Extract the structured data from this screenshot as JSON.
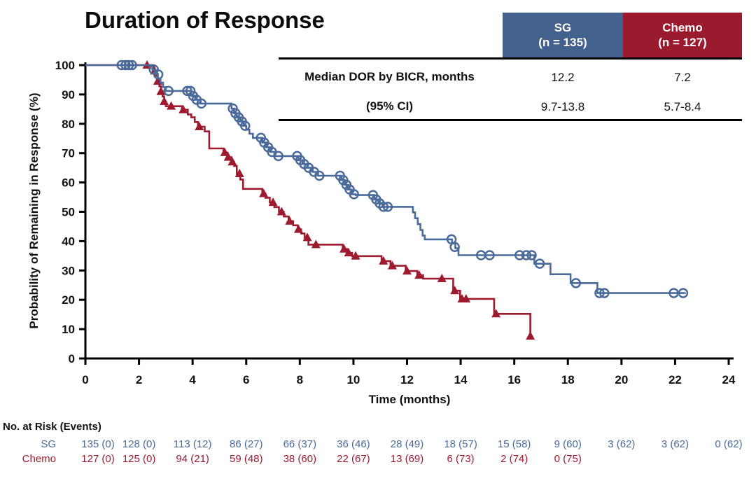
{
  "header": {
    "title": "Duration of Response"
  },
  "stats_table": {
    "columns": [
      {
        "label": "SG",
        "sub": "(n = 135)",
        "color": "#42618c"
      },
      {
        "label": "Chemo",
        "sub": "(n = 127)",
        "color": "#9b1b2e"
      }
    ],
    "rows": [
      {
        "label": "Median DOR by BICR, months",
        "sg": "12.2",
        "chemo": "7.2"
      },
      {
        "label": "(95% CI)",
        "sg": "9.7-13.8",
        "chemo": "5.7-8.4"
      }
    ]
  },
  "chart_data": {
    "type": "line",
    "subtype": "kaplan-meier-step",
    "title": "Duration of Response",
    "xlabel": "Time (months)",
    "ylabel": "Probability of Remaining in Response (%)",
    "xlim": [
      0,
      24
    ],
    "ylim": [
      0,
      100
    ],
    "xticks": [
      0,
      2,
      4,
      6,
      8,
      10,
      12,
      14,
      16,
      18,
      20,
      22,
      24
    ],
    "yticks": [
      0,
      10,
      20,
      30,
      40,
      50,
      60,
      70,
      80,
      90,
      100
    ],
    "grid": false,
    "legend_position": "none",
    "axis_color": "#000000",
    "series": [
      {
        "name": "SG",
        "color": "#4a6b9a",
        "marker": "open-circle",
        "median_months": 12.2,
        "steps": [
          [
            0,
            100
          ],
          [
            2.5,
            98.5
          ],
          [
            2.6,
            97
          ],
          [
            2.7,
            95.5
          ],
          [
            2.8,
            94
          ],
          [
            2.9,
            92.5
          ],
          [
            3.0,
            91.2
          ],
          [
            3.95,
            89.5
          ],
          [
            4.1,
            88.2
          ],
          [
            4.3,
            86.9
          ],
          [
            5.45,
            85.2
          ],
          [
            5.55,
            83.6
          ],
          [
            5.65,
            82.2
          ],
          [
            5.78,
            80.8
          ],
          [
            5.9,
            79.3
          ],
          [
            6.0,
            78
          ],
          [
            6.12,
            76.6
          ],
          [
            6.25,
            75.2
          ],
          [
            6.6,
            73.6
          ],
          [
            6.75,
            72
          ],
          [
            6.9,
            70.4
          ],
          [
            7.05,
            69
          ],
          [
            7.95,
            67.6
          ],
          [
            8.1,
            66.3
          ],
          [
            8.28,
            65
          ],
          [
            8.48,
            63.6
          ],
          [
            8.68,
            62.3
          ],
          [
            9.55,
            60.8
          ],
          [
            9.68,
            59.2
          ],
          [
            9.8,
            57.6
          ],
          [
            9.93,
            56
          ],
          [
            10.08,
            55.7
          ],
          [
            10.78,
            54.2
          ],
          [
            10.93,
            52.9
          ],
          [
            11.08,
            51.7
          ],
          [
            12.22,
            49.8
          ],
          [
            12.3,
            47.8
          ],
          [
            12.4,
            45.8
          ],
          [
            12.5,
            43.8
          ],
          [
            12.58,
            41.9
          ],
          [
            12.66,
            40.6
          ],
          [
            13.68,
            39.2
          ],
          [
            13.8,
            37.6
          ],
          [
            13.92,
            35.2
          ],
          [
            16.75,
            32.3
          ],
          [
            17.35,
            28.7
          ],
          [
            18.1,
            25.7
          ],
          [
            19.1,
            22.3
          ],
          [
            22.4,
            22.3
          ]
        ],
        "censor_marks": [
          [
            1.35,
            100
          ],
          [
            1.5,
            100
          ],
          [
            1.62,
            100
          ],
          [
            1.74,
            100
          ],
          [
            2.55,
            98.5
          ],
          [
            2.72,
            96.8
          ],
          [
            3.1,
            91.2
          ],
          [
            3.8,
            91.2
          ],
          [
            3.92,
            91.2
          ],
          [
            4.02,
            89.5
          ],
          [
            4.15,
            88.2
          ],
          [
            4.33,
            86.9
          ],
          [
            5.5,
            85.2
          ],
          [
            5.6,
            83.6
          ],
          [
            5.72,
            82.2
          ],
          [
            5.84,
            80.8
          ],
          [
            5.96,
            79.3
          ],
          [
            6.55,
            75.2
          ],
          [
            6.67,
            73.6
          ],
          [
            6.82,
            72
          ],
          [
            6.96,
            70.4
          ],
          [
            7.2,
            69
          ],
          [
            7.9,
            69
          ],
          [
            8.02,
            67.6
          ],
          [
            8.16,
            66.3
          ],
          [
            8.33,
            65
          ],
          [
            8.53,
            63.6
          ],
          [
            8.73,
            62.3
          ],
          [
            9.5,
            62.3
          ],
          [
            9.62,
            60.8
          ],
          [
            9.74,
            59.2
          ],
          [
            9.86,
            57.6
          ],
          [
            10.02,
            56
          ],
          [
            10.73,
            55.7
          ],
          [
            10.85,
            54.2
          ],
          [
            10.98,
            52.9
          ],
          [
            11.12,
            51.7
          ],
          [
            11.28,
            51.7
          ],
          [
            13.66,
            40.6
          ],
          [
            13.78,
            38
          ],
          [
            14.76,
            35.2
          ],
          [
            15.08,
            35.2
          ],
          [
            16.2,
            35.2
          ],
          [
            16.45,
            35.2
          ],
          [
            16.65,
            35.2
          ],
          [
            16.95,
            32.3
          ],
          [
            18.3,
            25.7
          ],
          [
            19.18,
            22.3
          ],
          [
            19.36,
            22.3
          ],
          [
            21.95,
            22.3
          ],
          [
            22.3,
            22.3
          ]
        ]
      },
      {
        "name": "Chemo",
        "color": "#9e1b2f",
        "marker": "filled-triangle",
        "median_months": 7.2,
        "steps": [
          [
            0,
            100
          ],
          [
            2.55,
            98
          ],
          [
            2.62,
            96.3
          ],
          [
            2.7,
            94.5
          ],
          [
            2.76,
            92.8
          ],
          [
            2.82,
            91
          ],
          [
            2.88,
            89.3
          ],
          [
            2.94,
            87.6
          ],
          [
            3.0,
            86
          ],
          [
            3.6,
            84.8
          ],
          [
            3.82,
            83.2
          ],
          [
            3.95,
            82.2
          ],
          [
            4.08,
            80.6
          ],
          [
            4.2,
            79
          ],
          [
            4.45,
            77.4
          ],
          [
            4.62,
            71.6
          ],
          [
            5.15,
            70.2
          ],
          [
            5.3,
            68.6
          ],
          [
            5.45,
            67
          ],
          [
            5.55,
            65.6
          ],
          [
            5.65,
            63
          ],
          [
            5.78,
            61
          ],
          [
            5.88,
            57.8
          ],
          [
            6.6,
            56.2
          ],
          [
            6.72,
            54.8
          ],
          [
            6.88,
            53.2
          ],
          [
            7.05,
            51.6
          ],
          [
            7.22,
            50
          ],
          [
            7.4,
            48.4
          ],
          [
            7.58,
            46.8
          ],
          [
            7.75,
            45.4
          ],
          [
            7.92,
            44
          ],
          [
            8.05,
            42.6
          ],
          [
            8.18,
            41.2
          ],
          [
            8.32,
            38.8
          ],
          [
            9.6,
            37.3
          ],
          [
            9.78,
            36
          ],
          [
            9.95,
            34.9
          ],
          [
            11.05,
            33.2
          ],
          [
            11.38,
            31.6
          ],
          [
            11.95,
            29.8
          ],
          [
            12.38,
            28.4
          ],
          [
            12.6,
            27.2
          ],
          [
            13.72,
            23.1
          ],
          [
            13.98,
            20.3
          ],
          [
            15.25,
            15.2
          ],
          [
            16.6,
            7.6
          ]
        ],
        "censor_marks": [
          [
            2.3,
            100
          ],
          [
            2.58,
            98
          ],
          [
            2.7,
            94.5
          ],
          [
            2.82,
            91
          ],
          [
            2.94,
            87.6
          ],
          [
            3.2,
            86
          ],
          [
            3.65,
            84.8
          ],
          [
            4.25,
            79
          ],
          [
            5.2,
            70.2
          ],
          [
            5.33,
            68.6
          ],
          [
            5.48,
            67
          ],
          [
            5.75,
            63
          ],
          [
            6.65,
            56.2
          ],
          [
            7.0,
            53.2
          ],
          [
            7.32,
            50
          ],
          [
            7.62,
            46.8
          ],
          [
            7.95,
            44
          ],
          [
            8.28,
            41.2
          ],
          [
            8.6,
            38.8
          ],
          [
            9.65,
            37.3
          ],
          [
            9.82,
            36
          ],
          [
            10.08,
            34.9
          ],
          [
            11.12,
            33.2
          ],
          [
            11.45,
            31.6
          ],
          [
            12.0,
            29.8
          ],
          [
            12.45,
            28.4
          ],
          [
            13.3,
            27.2
          ],
          [
            13.78,
            23.1
          ],
          [
            14.05,
            20.3
          ],
          [
            14.2,
            20.3
          ],
          [
            15.32,
            15.2
          ],
          [
            16.6,
            7.6
          ]
        ]
      }
    ]
  },
  "risk_table": {
    "title": "No. at Risk (Events)",
    "rows": [
      {
        "name": "SG",
        "color": "#4a6b9a",
        "values": [
          "135 (0)",
          "128 (0)",
          "113 (12)",
          "86 (27)",
          "66 (37)",
          "36 (46)",
          "28 (49)",
          "18 (57)",
          "15 (58)",
          "9 (60)",
          "3 (62)",
          "3 (62)",
          "0 (62)"
        ]
      },
      {
        "name": "Chemo",
        "color": "#9e1b2f",
        "values": [
          "127 (0)",
          "125 (0)",
          "94 (21)",
          "59 (48)",
          "38 (60)",
          "22 (67)",
          "13 (69)",
          "6 (73)",
          "2 (74)",
          "0 (75)"
        ]
      }
    ]
  }
}
